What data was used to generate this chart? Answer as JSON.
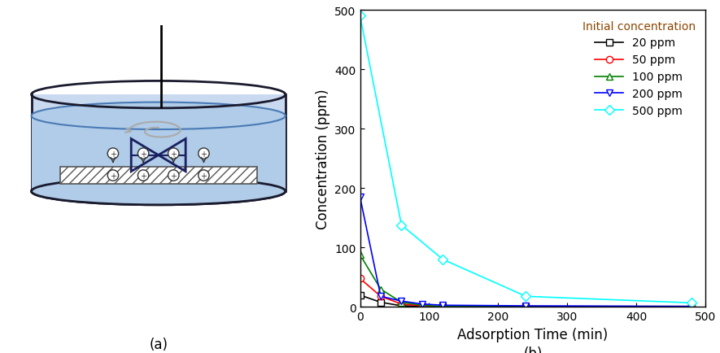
{
  "series": [
    {
      "label": "20 ppm",
      "color": "black",
      "marker": "s",
      "markersize": 6,
      "markerfacecolor": "white",
      "x": [
        0,
        30,
        60,
        90,
        120,
        240,
        480
      ],
      "y": [
        20,
        8,
        2,
        1,
        0.5,
        0.5,
        0.5
      ]
    },
    {
      "label": "50 ppm",
      "color": "red",
      "marker": "o",
      "markersize": 6,
      "markerfacecolor": "white",
      "x": [
        0,
        30,
        60,
        90,
        120,
        240,
        480
      ],
      "y": [
        48,
        18,
        5,
        2,
        1,
        1,
        1
      ]
    },
    {
      "label": "100 ppm",
      "color": "green",
      "marker": "^",
      "markersize": 6,
      "markerfacecolor": "white",
      "x": [
        0,
        30,
        60,
        90,
        120,
        240,
        480
      ],
      "y": [
        88,
        30,
        8,
        3,
        1,
        1,
        1
      ]
    },
    {
      "label": "200 ppm",
      "color": "blue",
      "marker": "v",
      "markersize": 6,
      "markerfacecolor": "white",
      "x": [
        0,
        30,
        60,
        90,
        120,
        240,
        480
      ],
      "y": [
        185,
        18,
        10,
        5,
        3,
        2,
        1
      ]
    },
    {
      "label": "500 ppm",
      "color": "cyan",
      "marker": "D",
      "markersize": 6,
      "markerfacecolor": "white",
      "x": [
        0,
        60,
        120,
        240,
        480
      ],
      "y": [
        490,
        138,
        80,
        18,
        7
      ]
    }
  ],
  "xlabel": "Adsorption Time (min)",
  "ylabel": "Concentration (ppm)",
  "legend_title": "Initial concentration",
  "legend_title_color": "#8B4500",
  "xlim": [
    0,
    500
  ],
  "ylim": [
    0,
    500
  ],
  "xticks": [
    0,
    100,
    200,
    300,
    400,
    500
  ],
  "yticks": [
    0,
    100,
    200,
    300,
    400,
    500
  ],
  "xlabel_fontsize": 12,
  "ylabel_fontsize": 12,
  "tick_fontsize": 10,
  "legend_fontsize": 10,
  "panel_label_fontsize": 12,
  "beaker_fill": "#c8d9f0",
  "beaker_stroke": "#1a1a2e",
  "liquid_fill": "#b0cce8"
}
